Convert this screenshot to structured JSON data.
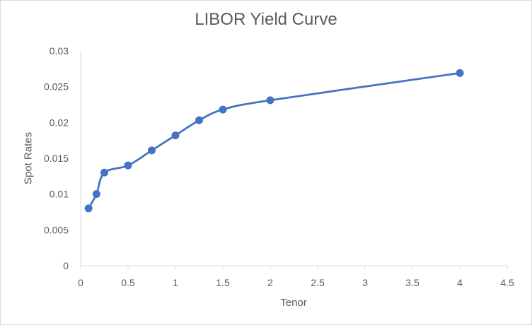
{
  "chart_data": {
    "type": "line",
    "title": "LIBOR Yield Curve",
    "xlabel": "Tenor",
    "ylabel": "Spot Rates",
    "xlim": [
      0,
      4.5
    ],
    "ylim": [
      0,
      0.03
    ],
    "x_ticks": [
      "0",
      "0.5",
      "1",
      "1.5",
      "2",
      "2.5",
      "3",
      "3.5",
      "4",
      "4.5"
    ],
    "y_ticks": [
      "0",
      "0.005",
      "0.01",
      "0.015",
      "0.02",
      "0.025",
      "0.03"
    ],
    "grid": false,
    "smooth": true,
    "series": [
      {
        "color": "#4472c4",
        "points": [
          [
            0.083,
            0.008
          ],
          [
            0.167,
            0.01
          ],
          [
            0.25,
            0.013
          ],
          [
            0.5,
            0.014
          ],
          [
            0.75,
            0.0161
          ],
          [
            1.0,
            0.0182
          ],
          [
            1.25,
            0.0203
          ],
          [
            1.5,
            0.0218
          ],
          [
            2.0,
            0.0231
          ],
          [
            4.0,
            0.0269
          ]
        ]
      }
    ]
  }
}
